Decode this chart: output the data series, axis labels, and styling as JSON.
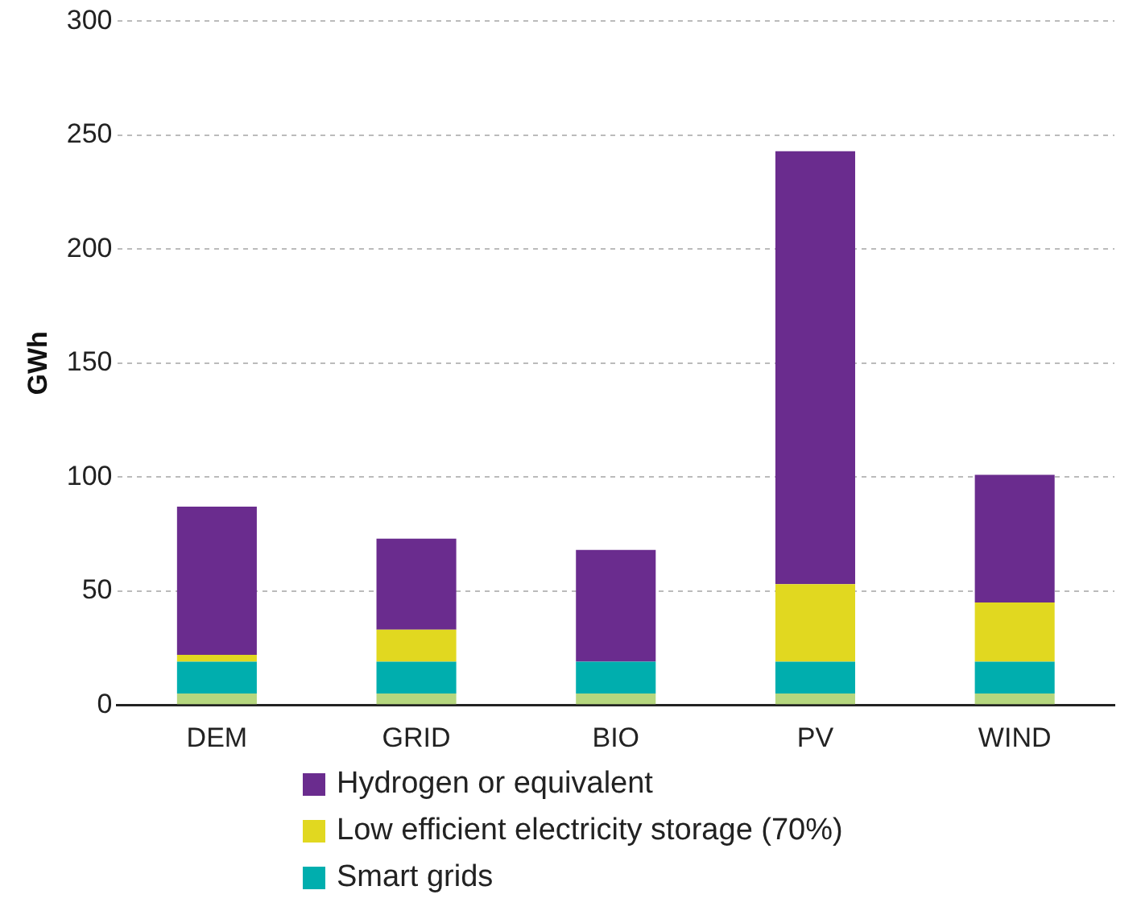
{
  "chart_data": {
    "type": "bar",
    "ylabel": "GWh",
    "categories": [
      "DEM",
      "GRID",
      "BIO",
      "PV",
      "WIND"
    ],
    "stacked": true,
    "series": [
      {
        "color": "#b5d67e",
        "values": [
          5,
          5,
          5,
          5,
          5
        ]
      },
      {
        "name": "Smart grids",
        "color": "#00aeae",
        "values": [
          14,
          14,
          14,
          14,
          14
        ]
      },
      {
        "name": "Low efficient electricity storage (70%)",
        "color": "#e1d820",
        "values": [
          3,
          14,
          0,
          34,
          26
        ]
      },
      {
        "name": "Hydrogen or equivalent",
        "color": "#6a2c8e",
        "values": [
          65,
          40,
          49,
          190,
          56
        ]
      }
    ],
    "ylim": [
      0,
      300
    ],
    "yticks": [
      0,
      50,
      100,
      150,
      200,
      250,
      300
    ],
    "grid": "y",
    "legend": "bottom"
  }
}
